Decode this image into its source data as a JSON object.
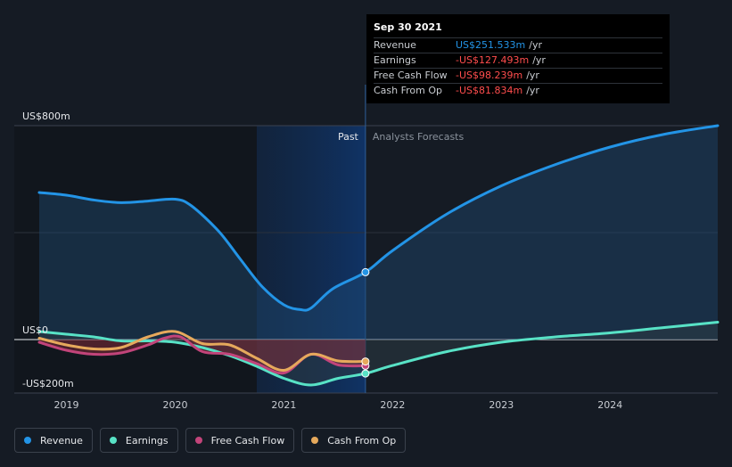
{
  "colors": {
    "revenue": "#2394e6",
    "earnings": "#58e2c6",
    "free_cash_flow": "#c2447a",
    "cash_from_op": "#e6a95c",
    "negative_value_text": "#ff4d4d"
  },
  "tooltip": {
    "date": "Sep 30 2021",
    "rows": [
      {
        "name": "Revenue",
        "value": "US$251.533m",
        "unit": "/yr"
      },
      {
        "name": "Earnings",
        "value": "-US$127.493m",
        "unit": "/yr"
      },
      {
        "name": "Free Cash Flow",
        "value": "-US$98.239m",
        "unit": "/yr"
      },
      {
        "name": "Cash From Op",
        "value": "-US$81.834m",
        "unit": "/yr"
      }
    ]
  },
  "legend": [
    {
      "label": "Revenue",
      "key": "revenue"
    },
    {
      "label": "Earnings",
      "key": "earnings"
    },
    {
      "label": "Free Cash Flow",
      "key": "free_cash_flow"
    },
    {
      "label": "Cash From Op",
      "key": "cash_from_op"
    }
  ],
  "chart_data": {
    "type": "line",
    "y_tick_labels": [
      "US$800m",
      "US$0",
      "-US$200m"
    ],
    "x_tick_labels": [
      "2019",
      "2020",
      "2021",
      "2022",
      "2023",
      "2024"
    ],
    "past_label": "Past",
    "forecast_label": "Analysts Forecasts",
    "xlim": [
      2018.52,
      2024.99
    ],
    "ylim": [
      -200,
      800
    ],
    "divider_x": 2021.75,
    "past_band_start": 2020.75,
    "series": [
      {
        "name": "Revenue",
        "key": "revenue",
        "points": [
          [
            2018.75,
            550
          ],
          [
            2019.0,
            540
          ],
          [
            2019.25,
            522
          ],
          [
            2019.5,
            512
          ],
          [
            2019.75,
            518
          ],
          [
            2020.0,
            525
          ],
          [
            2020.15,
            500
          ],
          [
            2020.4,
            405
          ],
          [
            2020.6,
            300
          ],
          [
            2020.8,
            198
          ],
          [
            2021.0,
            130
          ],
          [
            2021.15,
            112
          ],
          [
            2021.25,
            118
          ],
          [
            2021.45,
            190
          ],
          [
            2021.75,
            252
          ],
          [
            2022.0,
            333
          ],
          [
            2022.5,
            470
          ],
          [
            2023.0,
            575
          ],
          [
            2023.5,
            655
          ],
          [
            2024.0,
            720
          ],
          [
            2024.5,
            768
          ],
          [
            2024.99,
            800
          ]
        ]
      },
      {
        "name": "Earnings",
        "key": "earnings",
        "points": [
          [
            2018.75,
            30
          ],
          [
            2019.0,
            20
          ],
          [
            2019.25,
            10
          ],
          [
            2019.5,
            -5
          ],
          [
            2019.75,
            -5
          ],
          [
            2020.0,
            -10
          ],
          [
            2020.25,
            -30
          ],
          [
            2020.5,
            -60
          ],
          [
            2020.75,
            -100
          ],
          [
            2021.0,
            -145
          ],
          [
            2021.25,
            -170
          ],
          [
            2021.5,
            -145
          ],
          [
            2021.75,
            -127
          ],
          [
            2022.0,
            -97
          ],
          [
            2022.5,
            -45
          ],
          [
            2023.0,
            -10
          ],
          [
            2023.5,
            10
          ],
          [
            2024.0,
            25
          ],
          [
            2024.5,
            45
          ],
          [
            2024.99,
            65
          ]
        ]
      },
      {
        "name": "Free Cash Flow",
        "key": "free_cash_flow",
        "points": [
          [
            2018.75,
            -10
          ],
          [
            2019.0,
            -40
          ],
          [
            2019.25,
            -55
          ],
          [
            2019.5,
            -50
          ],
          [
            2019.75,
            -20
          ],
          [
            2019.9,
            5
          ],
          [
            2020.05,
            10
          ],
          [
            2020.25,
            -45
          ],
          [
            2020.5,
            -55
          ],
          [
            2020.75,
            -90
          ],
          [
            2021.0,
            -125
          ],
          [
            2021.25,
            -55
          ],
          [
            2021.5,
            -95
          ],
          [
            2021.75,
            -98
          ]
        ]
      },
      {
        "name": "Cash From Op",
        "key": "cash_from_op",
        "points": [
          [
            2018.75,
            5
          ],
          [
            2019.0,
            -20
          ],
          [
            2019.25,
            -35
          ],
          [
            2019.5,
            -30
          ],
          [
            2019.75,
            10
          ],
          [
            2020.0,
            30
          ],
          [
            2020.25,
            -15
          ],
          [
            2020.5,
            -20
          ],
          [
            2020.75,
            -70
          ],
          [
            2021.0,
            -115
          ],
          [
            2021.25,
            -55
          ],
          [
            2021.5,
            -80
          ],
          [
            2021.75,
            -82
          ]
        ]
      }
    ]
  }
}
